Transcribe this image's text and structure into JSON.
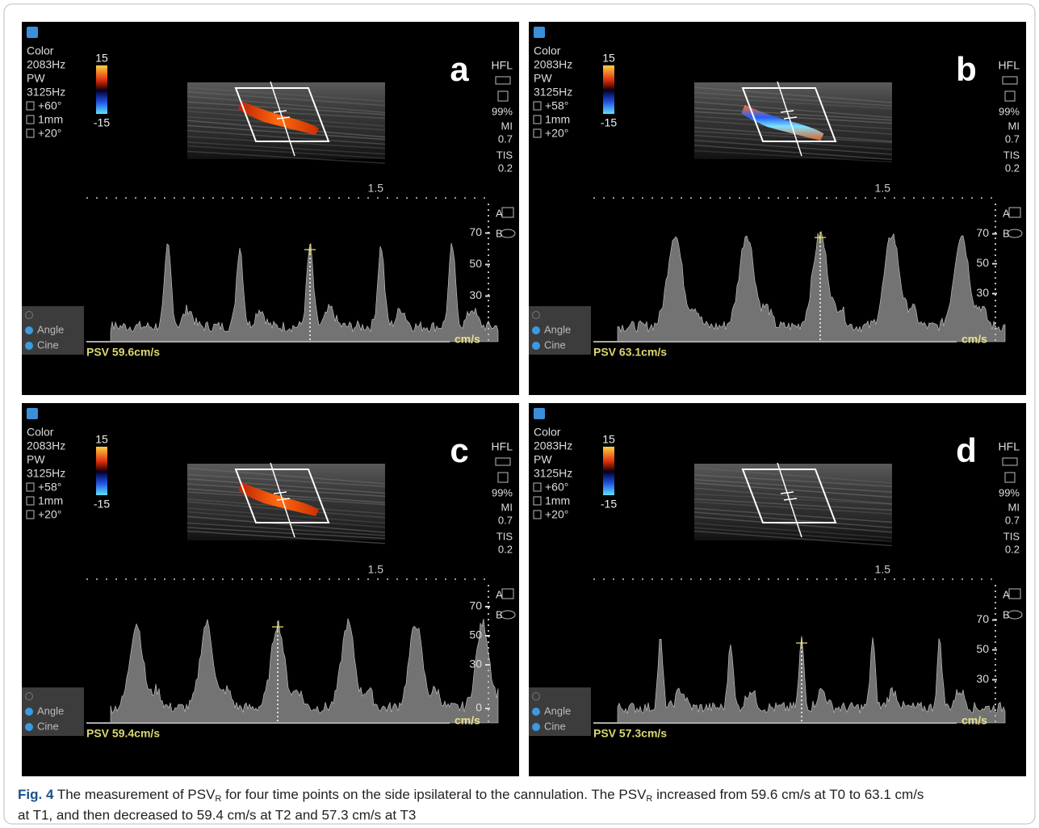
{
  "panels": [
    {
      "letter": "a",
      "settings": [
        "Color",
        "2083Hz",
        "PW",
        "3125Hz",
        "+60°",
        "1mm",
        "+20°"
      ],
      "scale_max": "15",
      "scale_min": "-15",
      "right": [
        "HFL",
        "99%",
        "MI",
        "0.7",
        "TIS",
        "0.2"
      ],
      "depth": "1.5",
      "velocity_ticks": [
        70,
        50,
        30
      ],
      "side_labels": [
        "A",
        "B"
      ],
      "unit": "cm/s",
      "controls": [
        "Angle",
        "Cine"
      ],
      "psv": "PSV 59.6cm/s"
    },
    {
      "letter": "b",
      "settings": [
        "Color",
        "2083Hz",
        "PW",
        "3125Hz",
        "+58°",
        "1mm",
        "+20°"
      ],
      "scale_max": "15",
      "scale_min": "-15",
      "right": [
        "HFL",
        "99%",
        "MI",
        "0.7",
        "TIS",
        "0.2"
      ],
      "depth": "1.5",
      "velocity_ticks": [
        70,
        50,
        30
      ],
      "side_labels": [
        "A",
        "B"
      ],
      "unit": "cm/s",
      "controls": [
        "Angle",
        "Cine"
      ],
      "psv": "PSV 63.1cm/s"
    },
    {
      "letter": "c",
      "settings": [
        "Color",
        "2083Hz",
        "PW",
        "3125Hz",
        "+58°",
        "1mm",
        "+20°"
      ],
      "scale_max": "15",
      "scale_min": "-15",
      "right": [
        "HFL",
        "99%",
        "MI",
        "0.7",
        "TIS",
        "0.2"
      ],
      "depth": "1.5",
      "velocity_ticks": [
        70,
        50,
        30,
        0
      ],
      "side_labels": [
        "A",
        "B"
      ],
      "unit": "cm/s",
      "controls": [
        "Angle",
        "Cine"
      ],
      "psv": "PSV 59.4cm/s"
    },
    {
      "letter": "d",
      "settings": [
        "Color",
        "2083Hz",
        "PW",
        "3125Hz",
        "+60°",
        "1mm",
        "+20°"
      ],
      "scale_max": "15",
      "scale_min": "-15",
      "right": [
        "HFL",
        "99%",
        "MI",
        "0.7",
        "TIS",
        "0.2"
      ],
      "depth": "1.5",
      "velocity_ticks": [
        70,
        50,
        30
      ],
      "side_labels": [
        "A",
        "B"
      ],
      "unit": "cm/s",
      "controls": [
        "Angle",
        "Cine"
      ],
      "psv": "PSV 57.3cm/s"
    }
  ],
  "caption": {
    "label": "Fig. 4",
    "parts": [
      " The measurement of PSV",
      "R",
      " for four time points on the side ipsilateral to the cannulation. The PSV",
      "R",
      " increased from 59.6 cm/s at T0 to 63.1 cm/s",
      "at T1, and then decreased to 59.4 cm/s at T2 and 57.3 cm/s at T3"
    ]
  }
}
